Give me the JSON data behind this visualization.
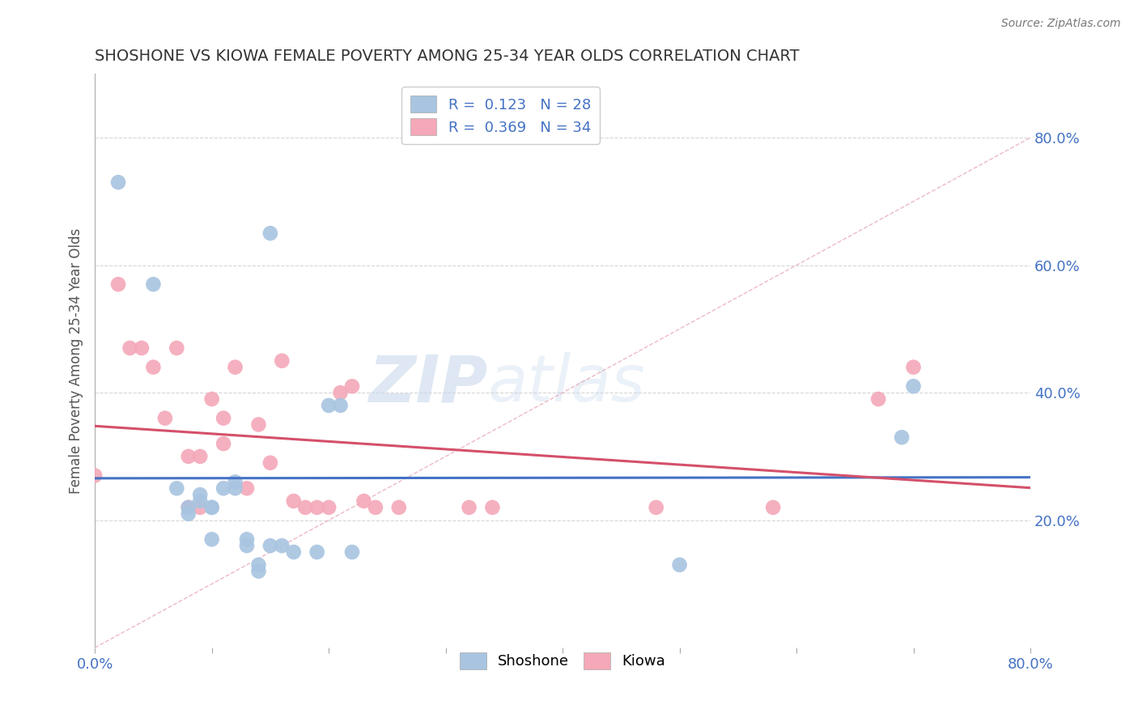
{
  "title": "SHOSHONE VS KIOWA FEMALE POVERTY AMONG 25-34 YEAR OLDS CORRELATION CHART",
  "source": "Source: ZipAtlas.com",
  "ylabel": "Female Poverty Among 25-34 Year Olds",
  "xlim": [
    0.0,
    0.8
  ],
  "ylim": [
    0.0,
    0.9
  ],
  "yticks_right": [
    0.2,
    0.4,
    0.6,
    0.8
  ],
  "ytick_right_labels": [
    "20.0%",
    "40.0%",
    "60.0%",
    "80.0%"
  ],
  "shoshone_r": 0.123,
  "shoshone_n": 28,
  "kiowa_r": 0.369,
  "kiowa_n": 34,
  "shoshone_color": "#a8c4e0",
  "kiowa_color": "#f4a8b8",
  "shoshone_line_color": "#4472c4",
  "kiowa_line_color": "#d4506a",
  "shoshone_x": [
    0.02,
    0.05,
    0.08,
    0.09,
    0.09,
    0.1,
    0.1,
    0.11,
    0.12,
    0.12,
    0.13,
    0.13,
    0.14,
    0.14,
    0.15,
    0.16,
    0.17,
    0.19,
    0.2,
    0.21,
    0.22,
    0.5,
    0.69,
    0.7,
    0.07,
    0.08,
    0.1,
    0.15
  ],
  "shoshone_y": [
    0.73,
    0.57,
    0.22,
    0.24,
    0.23,
    0.22,
    0.22,
    0.25,
    0.26,
    0.25,
    0.17,
    0.16,
    0.13,
    0.12,
    0.65,
    0.16,
    0.15,
    0.15,
    0.38,
    0.38,
    0.15,
    0.13,
    0.33,
    0.41,
    0.25,
    0.21,
    0.17,
    0.16
  ],
  "kiowa_x": [
    0.0,
    0.02,
    0.03,
    0.04,
    0.05,
    0.06,
    0.07,
    0.08,
    0.08,
    0.09,
    0.09,
    0.1,
    0.11,
    0.11,
    0.12,
    0.13,
    0.14,
    0.15,
    0.16,
    0.17,
    0.18,
    0.19,
    0.2,
    0.21,
    0.22,
    0.23,
    0.24,
    0.26,
    0.32,
    0.34,
    0.48,
    0.58,
    0.67,
    0.7
  ],
  "kiowa_y": [
    0.27,
    0.57,
    0.47,
    0.47,
    0.44,
    0.36,
    0.47,
    0.22,
    0.3,
    0.22,
    0.3,
    0.39,
    0.36,
    0.32,
    0.44,
    0.25,
    0.35,
    0.29,
    0.45,
    0.23,
    0.22,
    0.22,
    0.22,
    0.4,
    0.41,
    0.23,
    0.22,
    0.22,
    0.22,
    0.22,
    0.22,
    0.22,
    0.39,
    0.44
  ],
  "watermark_zip": "ZIP",
  "watermark_atlas": "atlas",
  "background_color": "#ffffff",
  "grid_color": "#cccccc"
}
